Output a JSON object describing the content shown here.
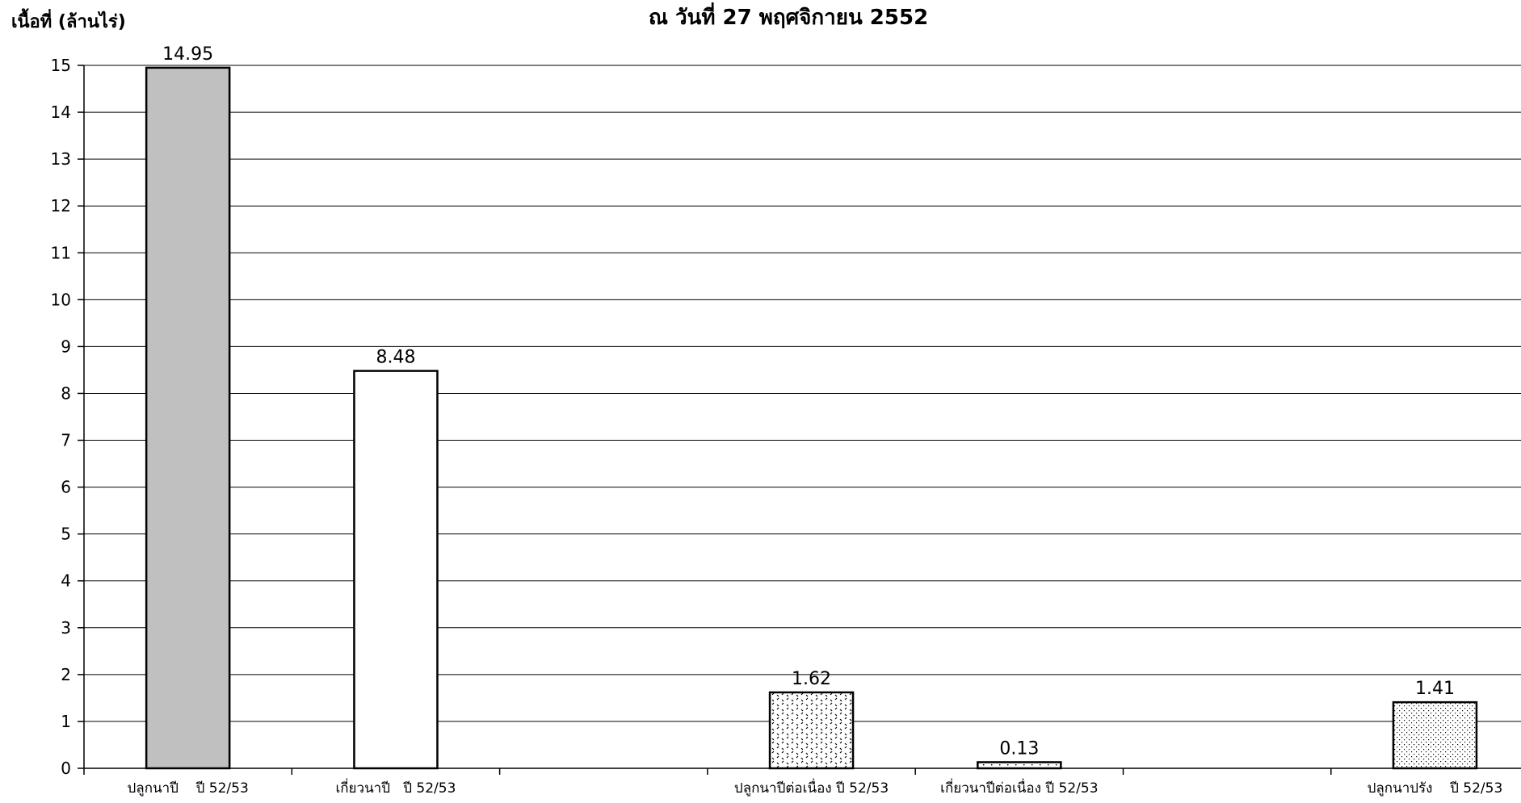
{
  "chart_data": {
    "type": "bar",
    "title": "ณ วันที่ 27  พฤศจิกายน 2552",
    "ylabel": "เนื้อที่ (ล้านไร่)",
    "xlabel": "",
    "ylim": [
      0,
      15
    ],
    "yticks": [
      0,
      1,
      2,
      3,
      4,
      5,
      6,
      7,
      8,
      9,
      10,
      11,
      12,
      13,
      14,
      15
    ],
    "grid": true,
    "categories": [
      "ปลูกนาปี    ปี 52/53",
      "เกี่ยวนาปี   ปี 52/53",
      "",
      "ปลูกนาปีต่อเนื่อง ปี 52/53",
      "เกี่ยวนาปีต่อเนื่อง ปี 52/53",
      "",
      "ปลูกนาปรัง    ปี 52/53"
    ],
    "values": [
      14.95,
      8.48,
      null,
      1.62,
      0.13,
      null,
      1.41
    ],
    "data_labels": [
      "14.95",
      "8.48",
      "",
      "1.62",
      "0.13",
      "",
      "1.41"
    ],
    "bar_fills": [
      "solid-gray",
      "white",
      "none",
      "diamond-dots",
      "sparse-dots",
      "none",
      "fine-dots"
    ],
    "colors": {
      "gray_bar": "#c0c0c0",
      "outline": "#000000",
      "background": "#ffffff"
    }
  }
}
